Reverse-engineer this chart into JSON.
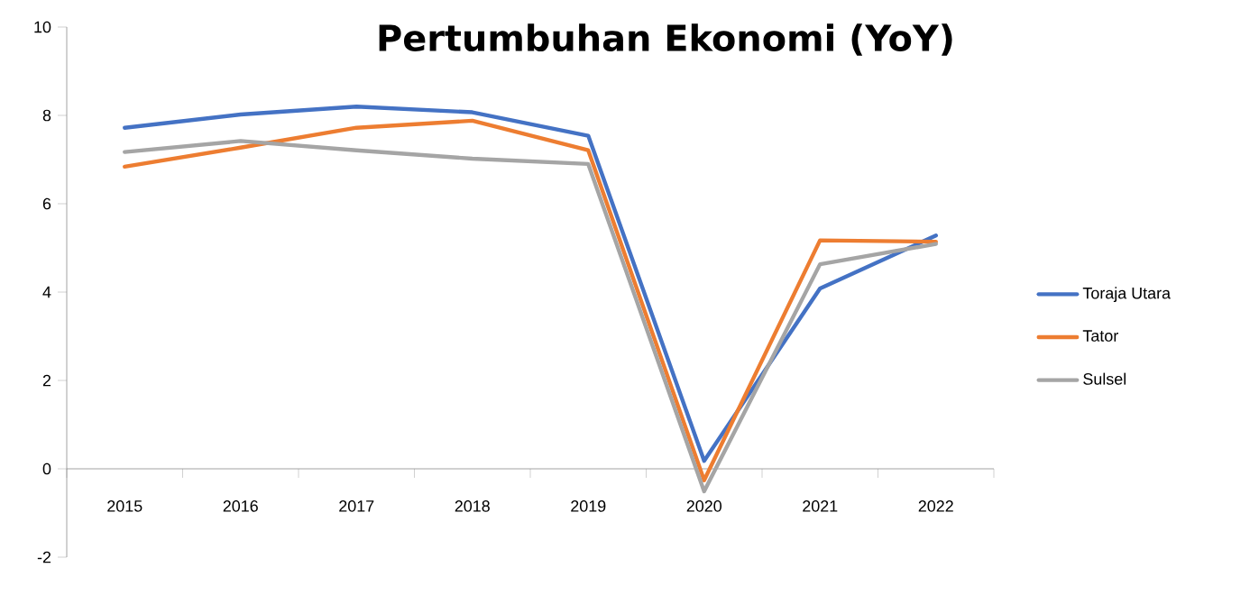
{
  "chart_data": {
    "type": "line",
    "title": "Pertumbuhan Ekonomi (YoY)",
    "categories": [
      "2015",
      "2016",
      "2017",
      "2018",
      "2019",
      "2020",
      "2021",
      "2022"
    ],
    "series": [
      {
        "name": "Toraja Utara",
        "color": "#4472c4",
        "values": [
          7.72,
          8.02,
          8.2,
          8.07,
          7.54,
          0.18,
          4.08,
          5.28
        ]
      },
      {
        "name": "Tator",
        "color": "#ed7d31",
        "values": [
          6.84,
          7.27,
          7.72,
          7.88,
          7.21,
          -0.26,
          5.17,
          5.14
        ]
      },
      {
        "name": "Sulsel",
        "color": "#a5a5a5",
        "values": [
          7.17,
          7.42,
          7.21,
          7.02,
          6.9,
          -0.51,
          4.63,
          5.09
        ]
      }
    ],
    "ylim": [
      -2,
      10
    ],
    "yticks": [
      -2,
      0,
      2,
      4,
      6,
      8,
      10
    ],
    "grid": false,
    "legend": "right",
    "marker": "none",
    "line_style": "solid"
  }
}
